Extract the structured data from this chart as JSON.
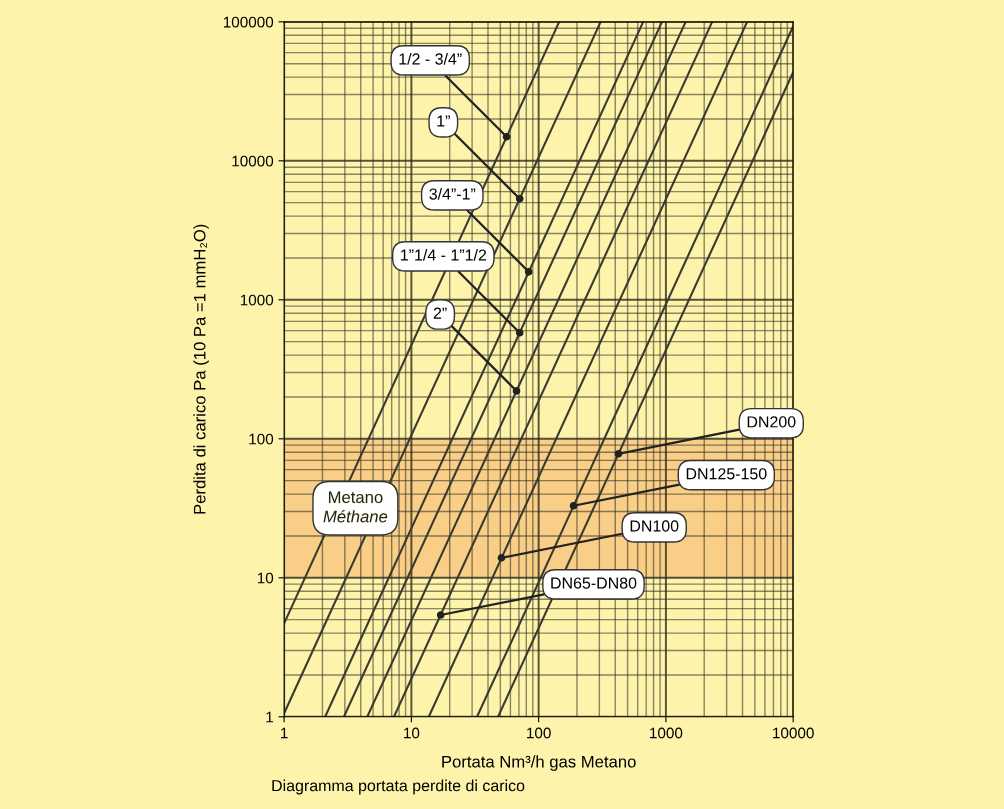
{
  "chart_data": {
    "type": "line",
    "xlabel": "Portata Nm³/h gas Metano",
    "ylabel": "Perdita di carico Pa (10 Pa =1 mmH₂O)",
    "log": "xy",
    "xlim": [
      1,
      10000
    ],
    "ylim": [
      1,
      100000
    ],
    "xticks": [
      1,
      10,
      100,
      1000,
      10000
    ],
    "yticks": [
      1,
      10,
      100,
      1000,
      10000,
      100000
    ],
    "grid": true,
    "marker": "none",
    "line_style": "solid",
    "series": [
      {
        "color": "#3a3a30",
        "x": [
          1,
          145
        ],
        "values": [
          4.7,
          100000
        ]
      },
      {
        "color": "#3a3a30",
        "x": [
          1,
          307
        ],
        "values": [
          1.06,
          100000
        ]
      },
      {
        "color": "#3a3a30",
        "x": [
          2.1,
          663
        ],
        "values": [
          1,
          100000
        ]
      },
      {
        "color": "#3a3a30",
        "x": [
          2.95,
          932
        ],
        "values": [
          1,
          100000
        ]
      },
      {
        "color": "#3a3a30",
        "x": [
          4.5,
          1430
        ],
        "values": [
          1,
          100000
        ]
      },
      {
        "color": "#3a3a30",
        "x": [
          7.3,
          2310
        ],
        "values": [
          1,
          100000
        ]
      },
      {
        "color": "#3a3a30",
        "x": [
          13.7,
          4350
        ],
        "values": [
          1,
          100000
        ]
      },
      {
        "color": "#3a3a30",
        "x": [
          32.8,
          10000
        ],
        "values": [
          1,
          93000
        ]
      },
      {
        "color": "#3a3a30",
        "x": [
          48,
          10000
        ],
        "values": [
          1,
          43400
        ]
      }
    ],
    "bands": [
      {
        "axis": "y",
        "from": 10,
        "to": 100,
        "label": "Metano\nMéthane",
        "color": "#f7c27a"
      }
    ],
    "annotations": [
      {
        "text": "1/2 - 3/4”",
        "x": 56,
        "y": 14900
      },
      {
        "text": "1”",
        "x": 71,
        "y": 5330
      },
      {
        "text": "3/4”-1”",
        "x": 83.5,
        "y": 1590
      },
      {
        "text": "1”1/4 - 1”1/2",
        "x": 71,
        "y": 579
      },
      {
        "text": "2”",
        "x": 67,
        "y": 221
      },
      {
        "text": "DN200",
        "x": 424,
        "y": 78
      },
      {
        "text": "DN125-150",
        "x": 188,
        "y": 33
      },
      {
        "text": "DN100",
        "x": 51,
        "y": 13.9
      },
      {
        "text": "DN65-DN80",
        "x": 17,
        "y": 5.4
      },
      "Diagramma portata perdite di carico"
    ]
  }
}
